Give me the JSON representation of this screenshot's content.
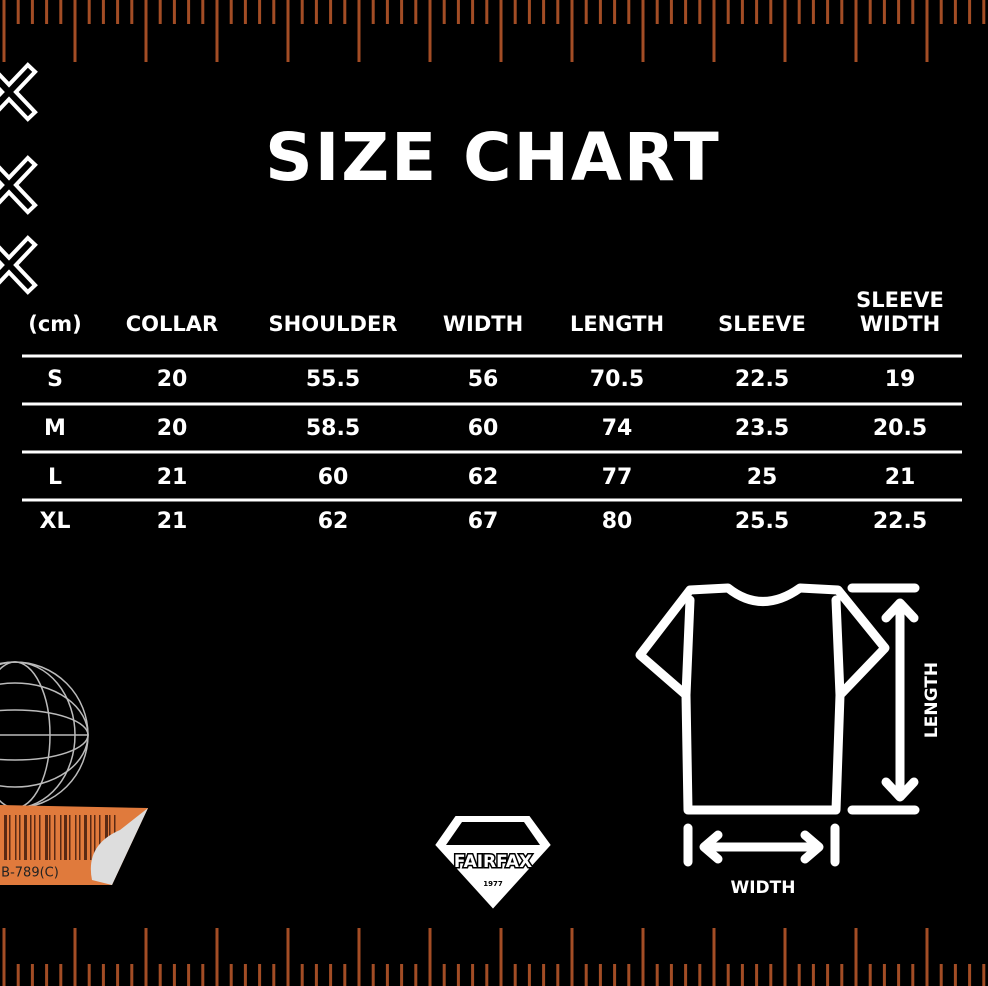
{
  "header": {
    "title": "SIZE CHART"
  },
  "table": {
    "columns": [
      "(cm)",
      "COLLAR",
      "SHOULDER",
      "WIDTH",
      "LENGTH",
      "SLEEVE",
      {
        "lines": [
          "SLEEVE",
          "WIDTH"
        ]
      }
    ],
    "rows": [
      [
        "S",
        "20",
        "55.5",
        "56",
        "70.5",
        "22.5",
        "19"
      ],
      [
        "M",
        "20",
        "58.5",
        "60",
        "74",
        "23.5",
        "20.5"
      ],
      [
        "L",
        "21",
        "60",
        "62",
        "77",
        "25",
        "21"
      ],
      [
        "XL",
        "21",
        "62",
        "67",
        "80",
        "25.5",
        "22.5"
      ]
    ]
  },
  "diagram": {
    "length_label": "LENGTH",
    "width_label": "WIDTH"
  },
  "logo": {
    "name": "FAIRFAX",
    "year": "1977"
  },
  "barcode": {
    "code": "B-789(C)"
  }
}
